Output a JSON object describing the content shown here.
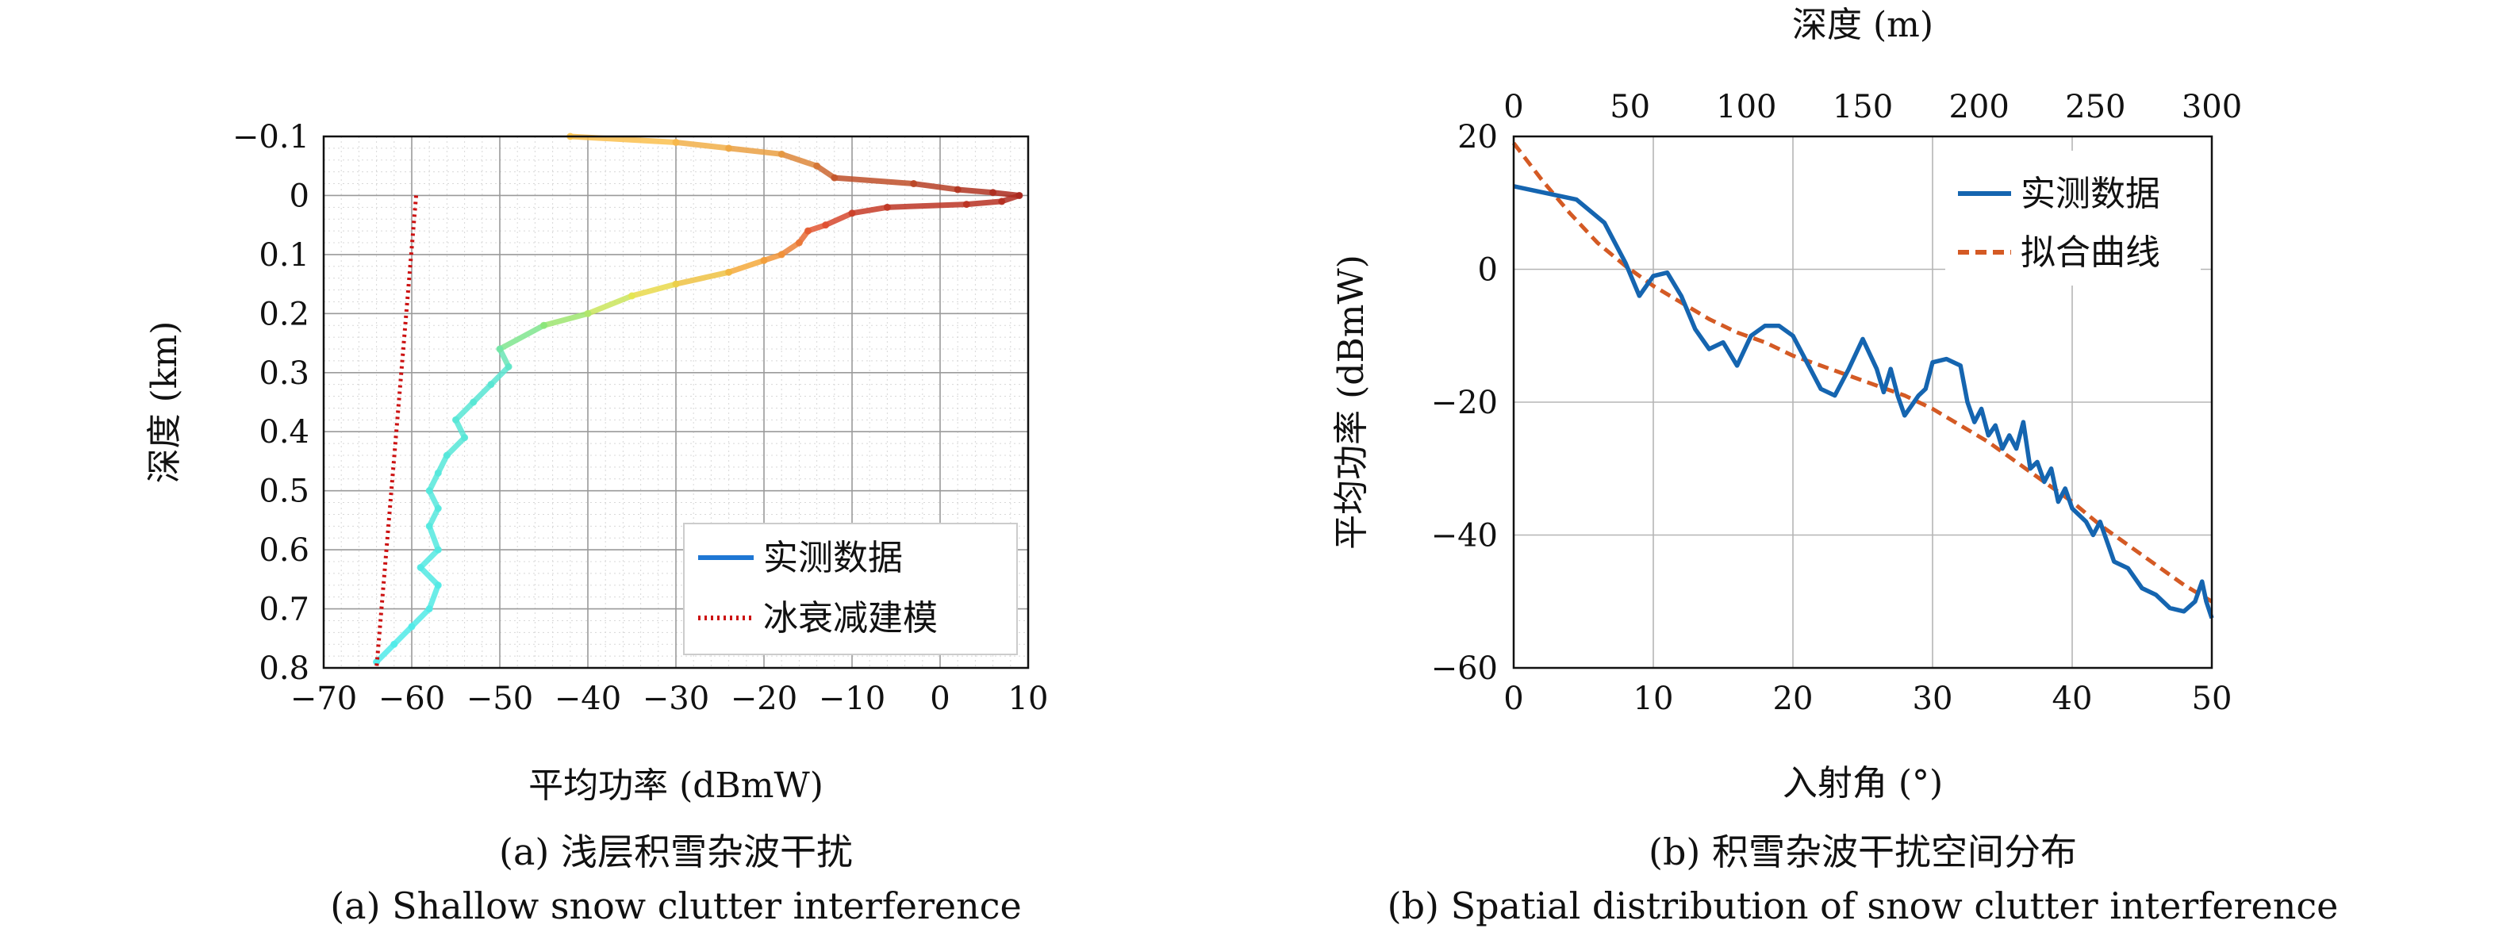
{
  "chart_data": [
    {
      "type": "line",
      "xlabel": "平均功率 (dBmW)",
      "ylabel": "深度 (km)",
      "xlim": [
        -70,
        10
      ],
      "ylim": [
        -0.1,
        0.8
      ],
      "y_inverted": true,
      "x_ticks": [
        "−70",
        "−60",
        "−50",
        "−40",
        "−30",
        "−20",
        "−10",
        "0",
        "10"
      ],
      "y_ticks": [
        "−0.1",
        "0",
        "0.1",
        "0.2",
        "0.3",
        "0.4",
        "0.5",
        "0.6",
        "0.7",
        "0.8"
      ],
      "grid": true,
      "minor_grid": true,
      "legend_position": "bottom-right",
      "series": [
        {
          "name": "实测数据",
          "color": "#1f77d4",
          "style": "solid",
          "rendered_as": "depth-colored line (cyan → green → yellow → red)",
          "points": [
            [
              -42,
              -0.1
            ],
            [
              -30,
              -0.09
            ],
            [
              -24,
              -0.08
            ],
            [
              -18,
              -0.07
            ],
            [
              -14,
              -0.05
            ],
            [
              -12,
              -0.03
            ],
            [
              -3,
              -0.02
            ],
            [
              2,
              -0.01
            ],
            [
              6,
              -0.005
            ],
            [
              9,
              0.0
            ],
            [
              7,
              0.01
            ],
            [
              3,
              0.015
            ],
            [
              -6,
              0.02
            ],
            [
              -10,
              0.03
            ],
            [
              -13,
              0.05
            ],
            [
              -15,
              0.06
            ],
            [
              -16,
              0.08
            ],
            [
              -18,
              0.1
            ],
            [
              -20,
              0.11
            ],
            [
              -24,
              0.13
            ],
            [
              -30,
              0.15
            ],
            [
              -35,
              0.17
            ],
            [
              -40,
              0.2
            ],
            [
              -45,
              0.22
            ],
            [
              -50,
              0.26
            ],
            [
              -49,
              0.29
            ],
            [
              -51,
              0.32
            ],
            [
              -53,
              0.35
            ],
            [
              -55,
              0.38
            ],
            [
              -54,
              0.41
            ],
            [
              -56,
              0.44
            ],
            [
              -57,
              0.47
            ],
            [
              -58,
              0.5
            ],
            [
              -57,
              0.53
            ],
            [
              -58,
              0.56
            ],
            [
              -57,
              0.6
            ],
            [
              -59,
              0.63
            ],
            [
              -57,
              0.66
            ],
            [
              -58,
              0.7
            ],
            [
              -60,
              0.73
            ],
            [
              -62,
              0.76
            ],
            [
              -64,
              0.79
            ]
          ]
        },
        {
          "name": "冰衰减建模",
          "color": "#cc1111",
          "style": "dotted",
          "points": [
            [
              -59.5,
              0.0
            ],
            [
              -64,
              0.8
            ]
          ]
        }
      ],
      "caption_cn": "(a) 浅层积雪杂波干扰",
      "caption_en": "(a) Shallow snow clutter interference"
    },
    {
      "type": "line",
      "xlabel": "入射角 (°)",
      "ylabel": "平均功率 (dBmW)",
      "top_xlabel": "深度 (m)",
      "xlim": [
        0,
        50
      ],
      "ylim": [
        -60,
        20
      ],
      "top_xlim": [
        0,
        300
      ],
      "x_ticks": [
        "0",
        "10",
        "20",
        "30",
        "40",
        "50"
      ],
      "y_ticks": [
        "20",
        "0",
        "−20",
        "−40",
        "−60"
      ],
      "top_x_ticks": [
        "0",
        "50",
        "100",
        "150",
        "200",
        "250",
        "300"
      ],
      "grid": true,
      "legend_position": "top-right",
      "series": [
        {
          "name": "实测数据",
          "color": "#1565b0",
          "style": "solid",
          "points": [
            [
              0,
              12.5
            ],
            [
              4.5,
              10.5
            ],
            [
              6.5,
              7
            ],
            [
              8,
              1
            ],
            [
              9,
              -4
            ],
            [
              10,
              -1
            ],
            [
              11,
              -0.5
            ],
            [
              12,
              -4
            ],
            [
              13,
              -9
            ],
            [
              14,
              -12
            ],
            [
              15,
              -11
            ],
            [
              16,
              -14.5
            ],
            [
              17,
              -10
            ],
            [
              18,
              -8.5
            ],
            [
              19,
              -8.5
            ],
            [
              20,
              -10
            ],
            [
              21,
              -14
            ],
            [
              22,
              -18
            ],
            [
              23,
              -19
            ],
            [
              24,
              -15
            ],
            [
              25,
              -10.5
            ],
            [
              26,
              -15
            ],
            [
              26.5,
              -18.5
            ],
            [
              27,
              -15
            ],
            [
              27.5,
              -19
            ],
            [
              28,
              -22
            ],
            [
              29,
              -19
            ],
            [
              29.5,
              -18
            ],
            [
              30,
              -14
            ],
            [
              31,
              -13.5
            ],
            [
              32,
              -14.5
            ],
            [
              32.5,
              -20
            ],
            [
              33,
              -23
            ],
            [
              33.5,
              -21
            ],
            [
              34,
              -25
            ],
            [
              34.5,
              -23.5
            ],
            [
              35,
              -27
            ],
            [
              35.5,
              -25
            ],
            [
              36,
              -27
            ],
            [
              36.5,
              -23
            ],
            [
              37,
              -30
            ],
            [
              37.5,
              -29
            ],
            [
              38,
              -32
            ],
            [
              38.5,
              -30
            ],
            [
              39,
              -35
            ],
            [
              39.5,
              -33
            ],
            [
              40,
              -36
            ],
            [
              41,
              -38
            ],
            [
              41.5,
              -40
            ],
            [
              42,
              -38
            ],
            [
              42.5,
              -41
            ],
            [
              43,
              -44
            ],
            [
              44,
              -45
            ],
            [
              45,
              -48
            ],
            [
              46,
              -49
            ],
            [
              47,
              -51
            ],
            [
              48,
              -51.5
            ],
            [
              48.8,
              -50
            ],
            [
              49.3,
              -47
            ],
            [
              49.6,
              -50
            ],
            [
              50,
              -52.5
            ]
          ]
        },
        {
          "name": "拟合曲线",
          "color": "#d45a24",
          "style": "dashed",
          "points": [
            [
              0,
              19
            ],
            [
              2,
              13.5
            ],
            [
              4,
              8.5
            ],
            [
              6,
              4
            ],
            [
              8,
              0.5
            ],
            [
              10,
              -2.5
            ],
            [
              12,
              -5
            ],
            [
              14,
              -7.5
            ],
            [
              16,
              -9.5
            ],
            [
              18,
              -11
            ],
            [
              20,
              -13
            ],
            [
              22,
              -14.5
            ],
            [
              24,
              -16
            ],
            [
              26,
              -17.5
            ],
            [
              28,
              -19
            ],
            [
              30,
              -21
            ],
            [
              32,
              -23.5
            ],
            [
              34,
              -26
            ],
            [
              36,
              -29
            ],
            [
              38,
              -32
            ],
            [
              40,
              -35
            ],
            [
              42,
              -38.5
            ],
            [
              44,
              -41.5
            ],
            [
              46,
              -44.5
            ],
            [
              48,
              -47.5
            ],
            [
              50,
              -50
            ]
          ]
        }
      ],
      "caption_cn": "(b) 积雪杂波干扰空间分布",
      "caption_en": "(b) Spatial distribution of snow clutter interference"
    }
  ]
}
